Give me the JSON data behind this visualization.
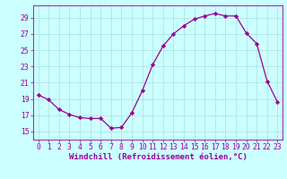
{
  "x": [
    0,
    1,
    2,
    3,
    4,
    5,
    6,
    7,
    8,
    9,
    10,
    11,
    12,
    13,
    14,
    15,
    16,
    17,
    18,
    19,
    20,
    21,
    22,
    23
  ],
  "y": [
    19.5,
    18.9,
    17.7,
    17.1,
    16.7,
    16.6,
    16.6,
    15.4,
    15.5,
    17.3,
    20.0,
    23.2,
    25.5,
    27.0,
    28.0,
    28.8,
    29.2,
    29.5,
    29.2,
    29.2,
    27.1,
    25.8,
    21.2,
    18.6
  ],
  "line_color": "#990099",
  "marker": "D",
  "marker_size": 2.2,
  "background_color": "#ccffff",
  "grid_color": "#aadddd",
  "xlabel": "Windchill (Refroidissement éolien,°C)",
  "ylabel": "",
  "ylim": [
    14,
    30.5
  ],
  "xlim": [
    -0.5,
    23.5
  ],
  "yticks": [
    15,
    17,
    19,
    21,
    23,
    25,
    27,
    29
  ],
  "xticks": [
    0,
    1,
    2,
    3,
    4,
    5,
    6,
    7,
    8,
    9,
    10,
    11,
    12,
    13,
    14,
    15,
    16,
    17,
    18,
    19,
    20,
    21,
    22,
    23
  ],
  "tick_color": "#990099",
  "label_color": "#990099",
  "xlabel_fontsize": 6.5,
  "tick_fontsize": 5.8,
  "linewidth": 0.9
}
